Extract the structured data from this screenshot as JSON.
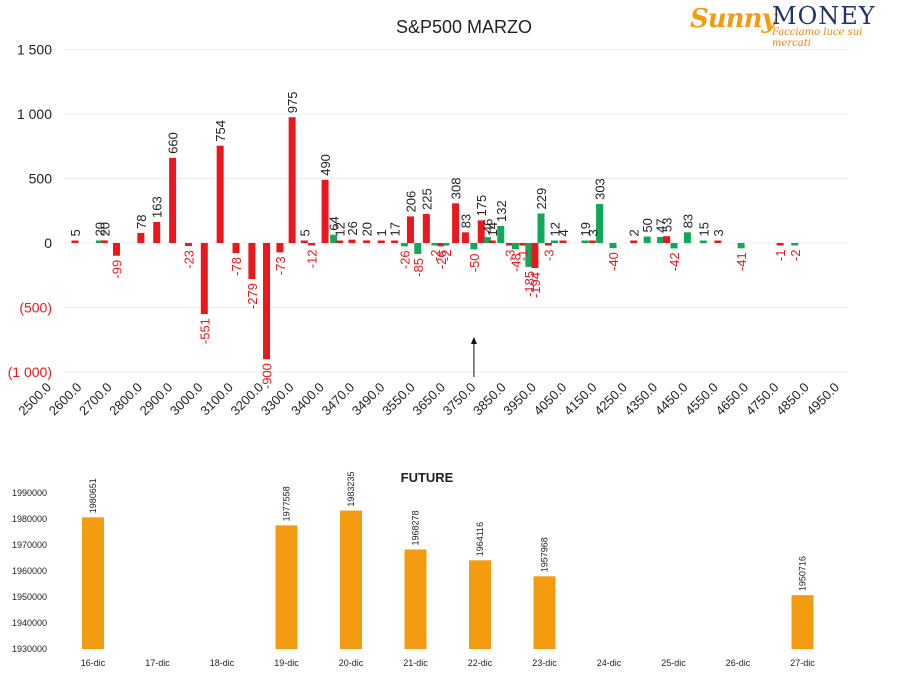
{
  "logo": {
    "word1": "Sunny",
    "word2": "MONEY",
    "tagline": "Facciamo luce sui mercati"
  },
  "colors": {
    "positive": "#12a85a",
    "negative": "#e8181e",
    "future_bar": "#f39c12",
    "text": "#222222",
    "neg_label": "#e8181e",
    "grid": "#eeeeee"
  },
  "chart_data": [
    {
      "type": "bar",
      "title": "S&P500 MARZO",
      "y_ticks": [
        "1 500",
        "1 000",
        "500",
        "0",
        "(500)",
        "(1 000)"
      ],
      "ylim": [
        -1000,
        1500
      ],
      "grid": true,
      "categories": [
        "2500.0",
        "2600.0",
        "2700.0",
        "2800.0",
        "2900.0",
        "3000.0",
        "3100.0",
        "3200.0",
        "3300.0",
        "3400.0",
        "3470.0",
        "3490.0",
        "3550.0",
        "3650.0",
        "3750.0",
        "3850.0",
        "3950.0",
        "4050.0",
        "4150.0",
        "4250.0",
        "4350.0",
        "4450.0",
        "4550.0",
        "4650.0",
        "4750.0",
        "4850.0",
        "4950.0"
      ],
      "bars": [
        {
          "x": 0.45,
          "v": 5,
          "kind": "neg",
          "label": "5"
        },
        {
          "x": 1.45,
          "v": 20,
          "kind": "pos",
          "label": "20"
        },
        {
          "x": 1.65,
          "v": 20,
          "kind": "neg",
          "label": "20"
        },
        {
          "x": 2.15,
          "v": -99,
          "kind": "neg",
          "label": "-99"
        },
        {
          "x": 3.15,
          "v": 78,
          "kind": "neg",
          "label": "78"
        },
        {
          "x": 3.8,
          "v": 163,
          "kind": "neg",
          "label": "163"
        },
        {
          "x": 4.45,
          "v": 660,
          "kind": "neg",
          "label": "660"
        },
        {
          "x": 5.1,
          "v": -23,
          "kind": "neg",
          "label": "-23"
        },
        {
          "x": 5.75,
          "v": -551,
          "kind": "neg",
          "label": "-551"
        },
        {
          "x": 6.4,
          "v": 754,
          "kind": "neg",
          "label": "754"
        },
        {
          "x": 7.05,
          "v": -78,
          "kind": "neg",
          "label": "-78"
        },
        {
          "x": 7.7,
          "v": -279,
          "kind": "neg",
          "label": "-279"
        },
        {
          "x": 8.3,
          "v": -900,
          "kind": "neg",
          "label": "-900"
        },
        {
          "x": 8.85,
          "v": -73,
          "kind": "neg",
          "label": "-73"
        },
        {
          "x": 9.35,
          "v": 975,
          "kind": "neg",
          "label": "975"
        },
        {
          "x": 9.85,
          "v": 5,
          "kind": "neg",
          "label": "5"
        },
        {
          "x": 10.15,
          "v": -12,
          "kind": "neg",
          "label": "-12"
        },
        {
          "x": 10.7,
          "v": 490,
          "kind": "neg",
          "label": "490"
        },
        {
          "x": 11.05,
          "v": 64,
          "kind": "pos",
          "label": "64"
        },
        {
          "x": 11.3,
          "v": 12,
          "kind": "neg",
          "label": "12"
        },
        {
          "x": 11.8,
          "v": 26,
          "kind": "neg",
          "label": "26"
        },
        {
          "x": 12.4,
          "v": 20,
          "kind": "neg",
          "label": "20"
        },
        {
          "x": 13.0,
          "v": 1,
          "kind": "neg",
          "label": "1"
        },
        {
          "x": 13.55,
          "v": 17,
          "kind": "neg",
          "label": "17"
        },
        {
          "x": 13.95,
          "v": -26,
          "kind": "pos",
          "label": "-26"
        },
        {
          "x": 14.2,
          "v": 206,
          "kind": "neg",
          "label": "206"
        },
        {
          "x": 14.5,
          "v": -85,
          "kind": "pos",
          "label": "-85"
        },
        {
          "x": 14.85,
          "v": 225,
          "kind": "neg",
          "label": "225"
        },
        {
          "x": 15.2,
          "v": -2,
          "kind": "pos",
          "label": "-2"
        },
        {
          "x": 15.45,
          "v": -26,
          "kind": "neg",
          "label": "-26"
        },
        {
          "x": 15.65,
          "v": -2,
          "kind": "pos",
          "label": "-2"
        },
        {
          "x": 16.05,
          "v": 308,
          "kind": "neg",
          "label": "308"
        },
        {
          "x": 16.45,
          "v": 83,
          "kind": "neg",
          "label": "83"
        },
        {
          "x": 16.8,
          "v": -50,
          "kind": "pos",
          "label": "-50"
        },
        {
          "x": 17.1,
          "v": 175,
          "kind": "neg",
          "label": "175"
        },
        {
          "x": 17.35,
          "v": 46,
          "kind": "pos",
          "label": "46"
        },
        {
          "x": 17.55,
          "v": 14,
          "kind": "neg",
          "label": "14"
        },
        {
          "x": 17.9,
          "v": 132,
          "kind": "pos",
          "label": "132"
        },
        {
          "x": 18.25,
          "v": -3,
          "kind": "neg",
          "label": "-3"
        },
        {
          "x": 18.5,
          "v": -48,
          "kind": "pos",
          "label": "-48"
        },
        {
          "x": 18.8,
          "v": -1,
          "kind": "neg",
          "label": "-1"
        },
        {
          "x": 19.05,
          "v": -185,
          "kind": "pos",
          "label": "-185"
        },
        {
          "x": 19.3,
          "v": -194,
          "kind": "neg",
          "label": "-194"
        },
        {
          "x": 19.55,
          "v": 229,
          "kind": "pos",
          "label": "229"
        },
        {
          "x": 19.85,
          "v": -3,
          "kind": "neg",
          "label": "-3"
        },
        {
          "x": 20.1,
          "v": 12,
          "kind": "pos",
          "label": "12"
        },
        {
          "x": 20.45,
          "v": 4,
          "kind": "neg",
          "label": "4"
        },
        {
          "x": 21.35,
          "v": 19,
          "kind": "pos",
          "label": "19"
        },
        {
          "x": 21.65,
          "v": 3,
          "kind": "neg",
          "label": "3"
        },
        {
          "x": 21.95,
          "v": 303,
          "kind": "pos",
          "label": "303"
        },
        {
          "x": 22.5,
          "v": -40,
          "kind": "pos",
          "label": "-40"
        },
        {
          "x": 23.35,
          "v": 2,
          "kind": "neg",
          "label": "2"
        },
        {
          "x": 23.9,
          "v": 50,
          "kind": "pos",
          "label": "50"
        },
        {
          "x": 24.45,
          "v": 47,
          "kind": "pos",
          "label": "47"
        },
        {
          "x": 24.7,
          "v": 53,
          "kind": "neg",
          "label": "53"
        },
        {
          "x": 25.0,
          "v": -42,
          "kind": "pos",
          "label": "-42"
        },
        {
          "x": 25.55,
          "v": 83,
          "kind": "pos",
          "label": "83"
        },
        {
          "x": 26.2,
          "v": 15,
          "kind": "pos",
          "label": "15"
        },
        {
          "x": 26.8,
          "v": 3,
          "kind": "neg",
          "label": "3"
        },
        {
          "x": 27.75,
          "v": -41,
          "kind": "pos",
          "label": "-41"
        },
        {
          "x": 29.35,
          "v": -1,
          "kind": "neg",
          "label": "-1"
        },
        {
          "x": 29.95,
          "v": -2,
          "kind": "pos",
          "label": "-2"
        }
      ],
      "marker": {
        "type": "arrow",
        "x": 16.8
      }
    },
    {
      "type": "bar",
      "title": "FUTURE",
      "y_ticks": [
        "1990000",
        "1980000",
        "1970000",
        "1960000",
        "1950000",
        "1940000",
        "1930000"
      ],
      "ylim": [
        1930000,
        1990000
      ],
      "categories": [
        "16-dic",
        "17-dic",
        "18-dic",
        "19-dic",
        "20-dic",
        "21-dic",
        "22-dic",
        "23-dic",
        "24-dic",
        "25-dic",
        "26-dic",
        "27-dic"
      ],
      "values": [
        1980651,
        null,
        null,
        1977558,
        1983235,
        1968278,
        1964116,
        1957968,
        null,
        null,
        null,
        1950716
      ],
      "labels": [
        "1980651",
        "",
        "",
        "1977558",
        "1983235",
        "1968278",
        "1964116",
        "1957968",
        "",
        "",
        "",
        "1950716"
      ]
    }
  ]
}
